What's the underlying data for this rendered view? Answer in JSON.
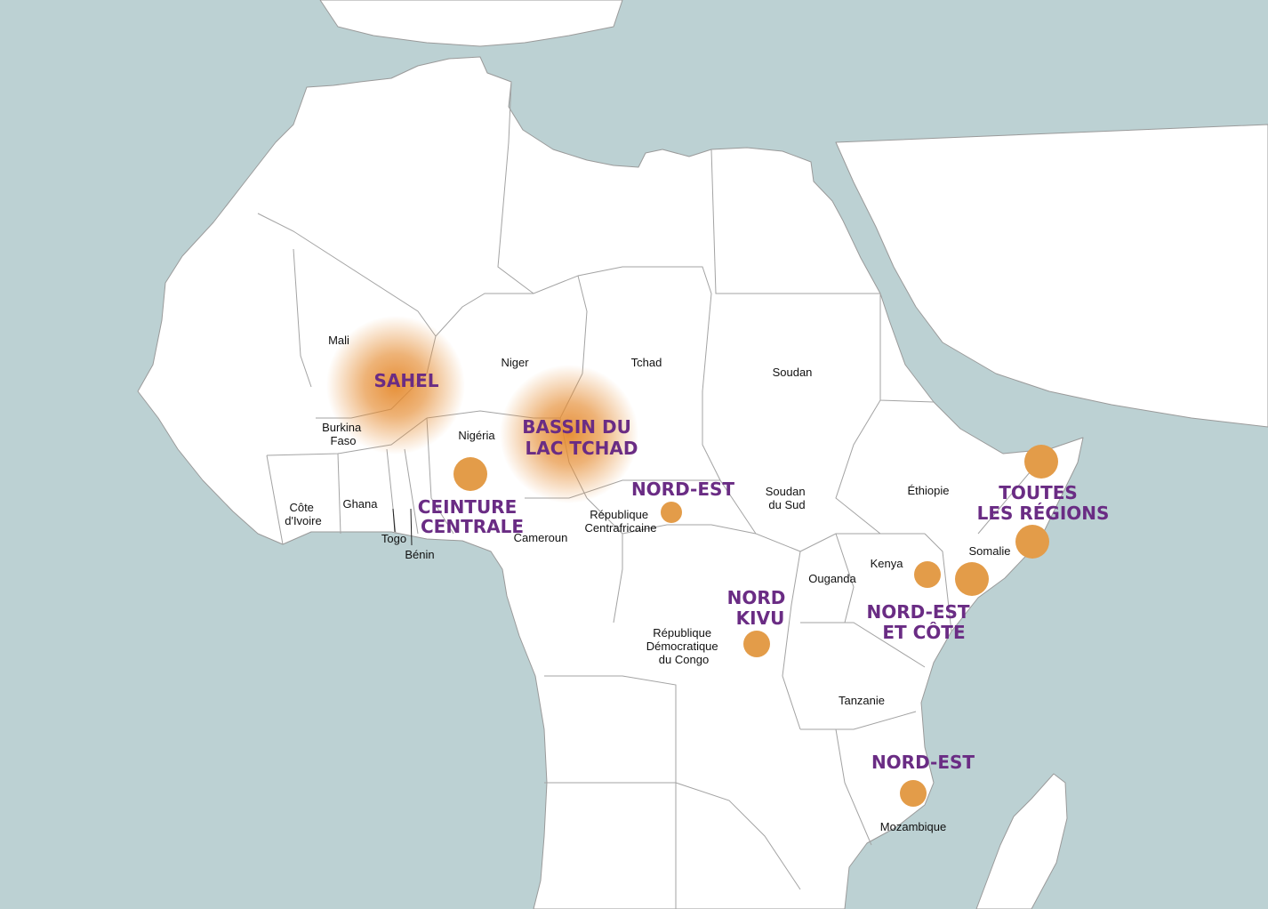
{
  "colors": {
    "ocean": "#bcd1d3",
    "land": "#ffffff",
    "region_label": "#6a2c84",
    "marker": "#e39c49",
    "halo": "#e58a2e"
  },
  "countries": {
    "mali": "Mali",
    "niger": "Niger",
    "tchad": "Tchad",
    "soudan": "Soudan",
    "burkina": [
      "Burkina",
      "Faso"
    ],
    "nigeria": "Nigéria",
    "cote_ivoire": [
      "Côte",
      "d'Ivoire"
    ],
    "ghana": "Ghana",
    "togo": "Togo",
    "benin": "Bénin",
    "cameroun": "Cameroun",
    "rca": [
      "République",
      "Centrafricaine"
    ],
    "soudan_sud": [
      "Soudan",
      "du Sud"
    ],
    "ethiopie": "Éthiopie",
    "somalie": "Somalie",
    "kenya": "Kenya",
    "ouganda": "Ouganda",
    "rdc": [
      "République",
      "Démocratique",
      "du Congo"
    ],
    "tanzanie": "Tanzanie",
    "mozambique": "Mozambique"
  },
  "regions": {
    "sahel": "SAHEL",
    "lac_tchad": [
      "BASSIN DU",
      "LAC TCHAD"
    ],
    "ceinture": [
      "CEINTURE",
      "CENTRALE"
    ],
    "nord_est_rca": "NORD-EST",
    "nord_kivu": [
      "NORD",
      "KIVU"
    ],
    "toutes": [
      "TOUTES",
      "LES RÉGIONS"
    ],
    "nord_est_cote": [
      "NORD-EST",
      "ET CÔTE"
    ],
    "nord_est_moz": "NORD-EST"
  }
}
